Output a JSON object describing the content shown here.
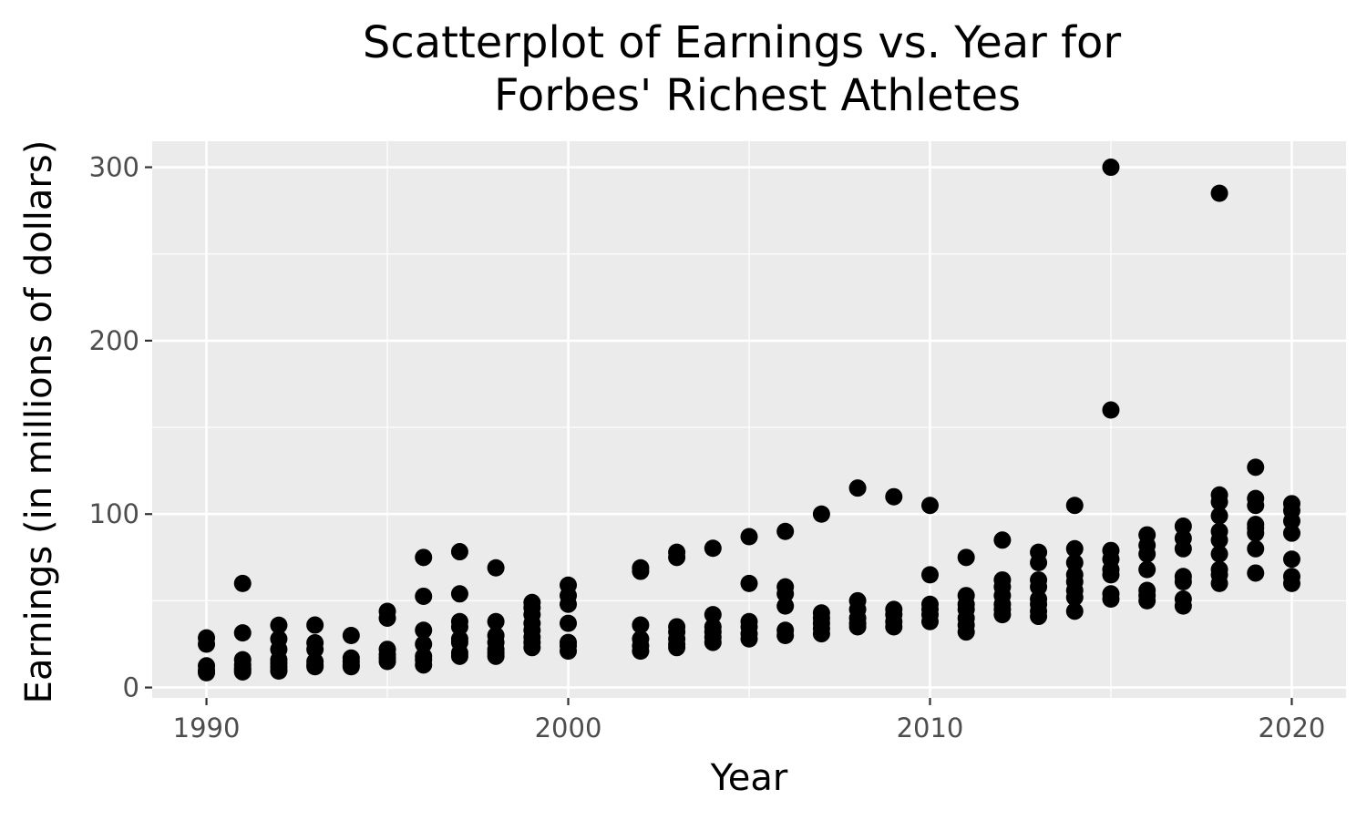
{
  "chart_data": {
    "type": "scatter",
    "title_lines": [
      "Scatterplot of Earnings vs. Year for",
      "Forbes' Richest Athletes"
    ],
    "xlabel": "Year",
    "ylabel": "Earnings (in millions of dollars)",
    "xlim": [
      1988.5,
      2021.5
    ],
    "ylim": [
      -6,
      315
    ],
    "x_ticks": [
      1990,
      2000,
      2010,
      2020
    ],
    "x_tick_labels": [
      "1990",
      "2000",
      "2010",
      "2020"
    ],
    "y_ticks": [
      0,
      100,
      200,
      300
    ],
    "y_tick_labels": [
      "0",
      "100",
      "200",
      "300"
    ],
    "x_minor": [
      1995,
      2005,
      2015
    ],
    "y_minor": [
      50,
      150,
      250
    ],
    "grid": true,
    "colors": {
      "panel": "#ebebeb",
      "grid": "#ffffff",
      "point": "#000000",
      "tick": "#333333"
    },
    "points": [
      [
        1990,
        28.6
      ],
      [
        1990,
        25
      ],
      [
        1990,
        12.5
      ],
      [
        1990,
        10
      ],
      [
        1990,
        9
      ],
      [
        1990,
        8.5
      ],
      [
        1991,
        60
      ],
      [
        1991,
        31.5
      ],
      [
        1991,
        16
      ],
      [
        1991,
        13
      ],
      [
        1991,
        11
      ],
      [
        1991,
        10
      ],
      [
        1991,
        9
      ],
      [
        1992,
        35.9
      ],
      [
        1992,
        28
      ],
      [
        1992,
        22
      ],
      [
        1992,
        16
      ],
      [
        1992,
        14
      ],
      [
        1992,
        12
      ],
      [
        1992,
        10
      ],
      [
        1992,
        9.5
      ],
      [
        1993,
        36
      ],
      [
        1993,
        25.8
      ],
      [
        1993,
        22
      ],
      [
        1993,
        15
      ],
      [
        1993,
        13
      ],
      [
        1993,
        12
      ],
      [
        1994,
        30
      ],
      [
        1994,
        17
      ],
      [
        1994,
        15
      ],
      [
        1994,
        13
      ],
      [
        1994,
        12
      ],
      [
        1995,
        43.9
      ],
      [
        1995,
        40
      ],
      [
        1995,
        22
      ],
      [
        1995,
        19
      ],
      [
        1995,
        17
      ],
      [
        1995,
        15
      ],
      [
        1996,
        75
      ],
      [
        1996,
        52.6
      ],
      [
        1996,
        33
      ],
      [
        1996,
        25
      ],
      [
        1996,
        18
      ],
      [
        1996,
        16
      ],
      [
        1996,
        13
      ],
      [
        1997,
        78.3
      ],
      [
        1997,
        54
      ],
      [
        1997,
        38
      ],
      [
        1997,
        35
      ],
      [
        1997,
        28
      ],
      [
        1997,
        26
      ],
      [
        1997,
        20
      ],
      [
        1997,
        18
      ],
      [
        1998,
        69
      ],
      [
        1998,
        38
      ],
      [
        1998,
        30
      ],
      [
        1998,
        26
      ],
      [
        1998,
        22
      ],
      [
        1998,
        20
      ],
      [
        1998,
        18
      ],
      [
        1999,
        49
      ],
      [
        1999,
        46
      ],
      [
        1999,
        42
      ],
      [
        1999,
        37
      ],
      [
        1999,
        33
      ],
      [
        1999,
        29
      ],
      [
        1999,
        26
      ],
      [
        1999,
        23
      ],
      [
        2000,
        59
      ],
      [
        2000,
        53
      ],
      [
        2000,
        48
      ],
      [
        2000,
        37
      ],
      [
        2000,
        26
      ],
      [
        2000,
        24
      ],
      [
        2000,
        21
      ],
      [
        2002,
        69
      ],
      [
        2002,
        67
      ],
      [
        2002,
        36
      ],
      [
        2002,
        28
      ],
      [
        2002,
        24
      ],
      [
        2002,
        21
      ],
      [
        2003,
        78
      ],
      [
        2003,
        75
      ],
      [
        2003,
        35
      ],
      [
        2003,
        32
      ],
      [
        2003,
        28
      ],
      [
        2003,
        25
      ],
      [
        2003,
        23
      ],
      [
        2004,
        80.3
      ],
      [
        2004,
        42
      ],
      [
        2004,
        35
      ],
      [
        2004,
        32
      ],
      [
        2004,
        29
      ],
      [
        2004,
        26
      ],
      [
        2005,
        87
      ],
      [
        2005,
        60
      ],
      [
        2005,
        38
      ],
      [
        2005,
        35
      ],
      [
        2005,
        31
      ],
      [
        2005,
        28
      ],
      [
        2006,
        90
      ],
      [
        2006,
        58
      ],
      [
        2006,
        54
      ],
      [
        2006,
        47
      ],
      [
        2006,
        33
      ],
      [
        2006,
        30
      ],
      [
        2007,
        100
      ],
      [
        2007,
        43
      ],
      [
        2007,
        40
      ],
      [
        2007,
        37
      ],
      [
        2007,
        34
      ],
      [
        2007,
        31
      ],
      [
        2008,
        115
      ],
      [
        2008,
        50
      ],
      [
        2008,
        45
      ],
      [
        2008,
        40
      ],
      [
        2008,
        37
      ],
      [
        2008,
        35
      ],
      [
        2009,
        110
      ],
      [
        2009,
        45
      ],
      [
        2009,
        42
      ],
      [
        2009,
        38
      ],
      [
        2009,
        35
      ],
      [
        2010,
        105
      ],
      [
        2010,
        65
      ],
      [
        2010,
        48
      ],
      [
        2010,
        45
      ],
      [
        2010,
        42
      ],
      [
        2010,
        38
      ],
      [
        2011,
        75
      ],
      [
        2011,
        53
      ],
      [
        2011,
        48
      ],
      [
        2011,
        45
      ],
      [
        2011,
        40
      ],
      [
        2011,
        36
      ],
      [
        2011,
        32
      ],
      [
        2012,
        85
      ],
      [
        2012,
        62
      ],
      [
        2012,
        58
      ],
      [
        2012,
        53
      ],
      [
        2012,
        48
      ],
      [
        2012,
        45
      ],
      [
        2012,
        42
      ],
      [
        2013,
        78
      ],
      [
        2013,
        72
      ],
      [
        2013,
        62
      ],
      [
        2013,
        58
      ],
      [
        2013,
        51
      ],
      [
        2013,
        48
      ],
      [
        2013,
        44
      ],
      [
        2013,
        41
      ],
      [
        2014,
        105
      ],
      [
        2014,
        80
      ],
      [
        2014,
        72
      ],
      [
        2014,
        65
      ],
      [
        2014,
        61
      ],
      [
        2014,
        56
      ],
      [
        2014,
        52
      ],
      [
        2014,
        44
      ],
      [
        2015,
        300
      ],
      [
        2015,
        160
      ],
      [
        2015,
        79
      ],
      [
        2015,
        74
      ],
      [
        2015,
        68
      ],
      [
        2015,
        65
      ],
      [
        2015,
        54
      ],
      [
        2015,
        51
      ],
      [
        2016,
        88
      ],
      [
        2016,
        82
      ],
      [
        2016,
        77
      ],
      [
        2016,
        68
      ],
      [
        2016,
        56
      ],
      [
        2016,
        53
      ],
      [
        2016,
        50
      ],
      [
        2017,
        93
      ],
      [
        2017,
        86
      ],
      [
        2017,
        80
      ],
      [
        2017,
        64
      ],
      [
        2017,
        61
      ],
      [
        2017,
        51
      ],
      [
        2017,
        47
      ],
      [
        2018,
        285
      ],
      [
        2018,
        111
      ],
      [
        2018,
        107
      ],
      [
        2018,
        99
      ],
      [
        2018,
        90
      ],
      [
        2018,
        85
      ],
      [
        2018,
        77
      ],
      [
        2018,
        68
      ],
      [
        2018,
        65
      ],
      [
        2018,
        60
      ],
      [
        2019,
        127
      ],
      [
        2019,
        109
      ],
      [
        2019,
        105
      ],
      [
        2019,
        94
      ],
      [
        2019,
        92
      ],
      [
        2019,
        89
      ],
      [
        2019,
        80
      ],
      [
        2019,
        66
      ],
      [
        2020,
        106
      ],
      [
        2020,
        102
      ],
      [
        2020,
        96
      ],
      [
        2020,
        89
      ],
      [
        2020,
        74
      ],
      [
        2020,
        64
      ],
      [
        2020,
        60
      ]
    ]
  }
}
